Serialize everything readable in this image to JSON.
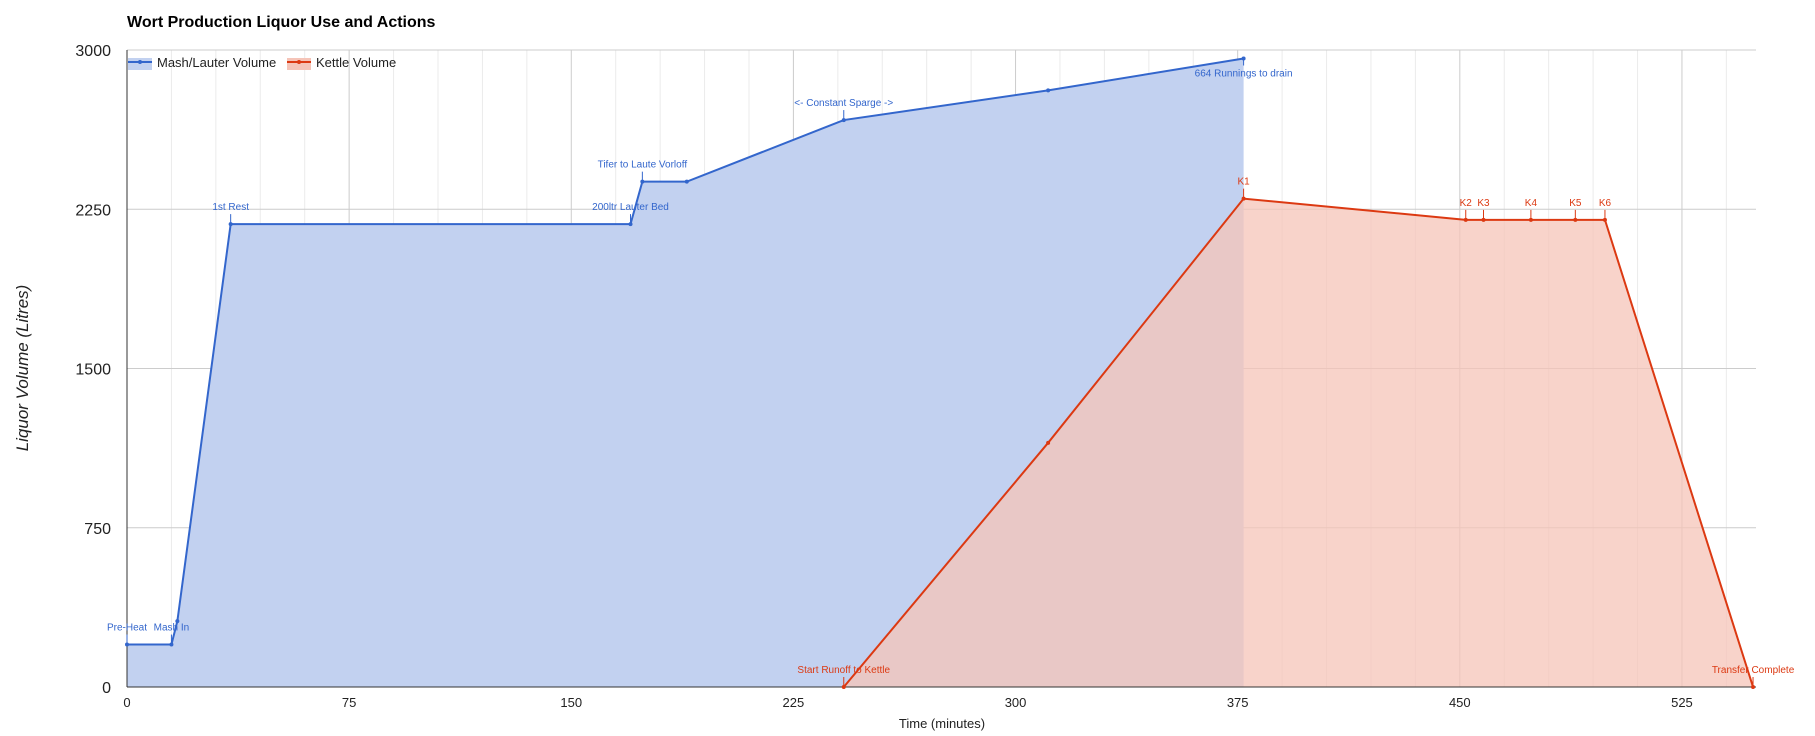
{
  "chart_data": {
    "type": "area",
    "title": "Wort Production Liquor Use and Actions",
    "xlabel": "Time (minutes)",
    "ylabel": "Liquor Volume (Litres)",
    "xlim": [
      0,
      550
    ],
    "ylim": [
      0,
      3000
    ],
    "x_ticks": [
      "0",
      "75",
      "150",
      "225",
      "300",
      "375",
      "450",
      "525"
    ],
    "y_ticks": [
      "0",
      "750",
      "1500",
      "2250",
      "3000"
    ],
    "grid": true,
    "legend_position": "top-left",
    "series": [
      {
        "name": "Mash/Lauter Volume",
        "color": "#3366cc",
        "fill": "#c2d1f0",
        "points": [
          [
            0,
            200
          ],
          [
            15,
            200
          ],
          [
            17,
            310
          ],
          [
            35,
            2180
          ],
          [
            170,
            2180
          ],
          [
            174,
            2380
          ],
          [
            189,
            2380
          ],
          [
            242,
            2670
          ],
          [
            311,
            2810
          ],
          [
            377,
            2960
          ]
        ]
      },
      {
        "name": "Kettle Volume",
        "color": "#dc3912",
        "fill": "#f5c4b8",
        "points": [
          [
            242,
            0
          ],
          [
            311,
            1150
          ],
          [
            377,
            2300
          ],
          [
            452,
            2200
          ],
          [
            458,
            2200
          ],
          [
            474,
            2200
          ],
          [
            489,
            2200
          ],
          [
            499,
            2200
          ],
          [
            549,
            0
          ]
        ]
      }
    ],
    "annotations": [
      {
        "text": "Pre-Heat",
        "x": 0,
        "y": 200,
        "series": 0
      },
      {
        "text": "Mash In",
        "x": 15,
        "y": 200,
        "series": 0
      },
      {
        "text": "1st Rest",
        "x": 35,
        "y": 2180,
        "series": 0
      },
      {
        "text": "200ltr Lauter Bed",
        "x": 170,
        "y": 2180,
        "series": 0
      },
      {
        "text": "Tifer to Laute Vorloff",
        "x": 174,
        "y": 2380,
        "series": 0
      },
      {
        "text": "<- Constant Sparge ->",
        "x": 242,
        "y": 2670,
        "series": 0
      },
      {
        "text": "664 Runnings to drain",
        "x": 377,
        "y": 2960,
        "series": 0,
        "below": true
      },
      {
        "text": "Start Runoff to Kettle",
        "x": 242,
        "y": 0,
        "series": 1
      },
      {
        "text": "K1",
        "x": 377,
        "y": 2300,
        "series": 1
      },
      {
        "text": "K2",
        "x": 452,
        "y": 2200,
        "series": 1
      },
      {
        "text": "K3",
        "x": 458,
        "y": 2200,
        "series": 1
      },
      {
        "text": "K4",
        "x": 474,
        "y": 2200,
        "series": 1
      },
      {
        "text": "K5",
        "x": 489,
        "y": 2200,
        "series": 1
      },
      {
        "text": "K6",
        "x": 499,
        "y": 2200,
        "series": 1
      },
      {
        "text": "Transfer Complete",
        "x": 549,
        "y": 0,
        "series": 1
      }
    ]
  }
}
